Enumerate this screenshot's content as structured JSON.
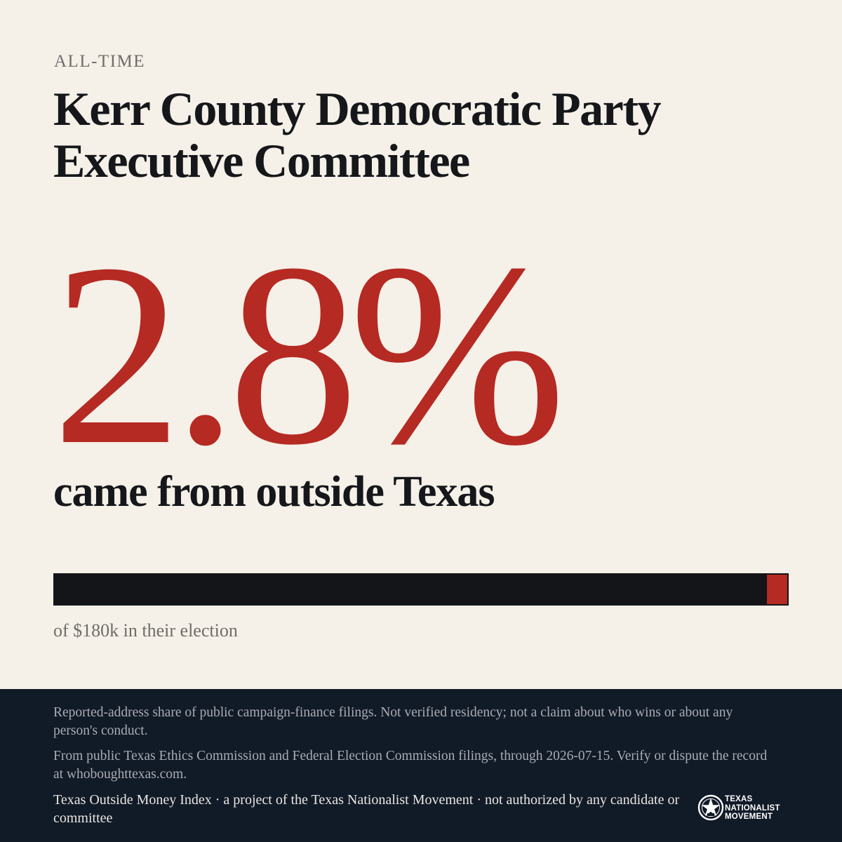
{
  "header": {
    "eyebrow": "ALL-TIME",
    "title": "Kerr County Democratic Party Executive Committee"
  },
  "stat": {
    "percent_label": "2.8%",
    "percent_value": 2.8,
    "caption": "came from outside Texas"
  },
  "bar": {
    "fill_fraction": 0.028,
    "caption": "of $180k in their election"
  },
  "footer": {
    "note_1": "Reported-address share of public campaign-finance filings. Not verified residency; not a claim about who wins or about any person's conduct.",
    "note_2": "From public Texas Ethics Commission and Federal Election Commission filings, through 2026-07-15. Verify or dispute the record at whoboughttexas.com.",
    "credit": "Texas Outside Money Index · a project of the Texas Nationalist Movement · not authorized by any candidate or committee",
    "logo_lines": [
      "TEXAS",
      "NATIONALIST",
      "MOVEMENT"
    ],
    "logo_icon": "star-seal-icon"
  },
  "colors": {
    "background": "#f5f0e8",
    "accent": "#b52a22",
    "ink": "#141518",
    "footer_bg": "#111a27"
  }
}
